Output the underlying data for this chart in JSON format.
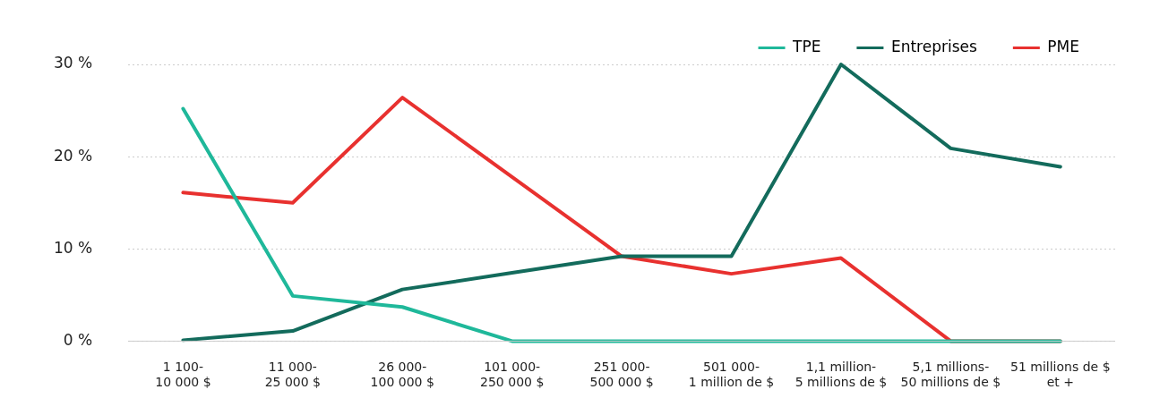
{
  "chart_data": {
    "type": "line",
    "categories": [
      "1 100-\n10 000 $",
      "11 000-\n25 000 $",
      "26 000-\n100 000 $",
      "101 000-\n250 000 $",
      "251 000-\n500 000 $",
      "501 000-\n1 million de $",
      "1,1 million-\n5 millions de $",
      "5,1 millions-\n50 millions de $",
      "51 millions de $\net +"
    ],
    "series": [
      {
        "name": "TPE",
        "color": "#1fb89a",
        "values": [
          25.2,
          4.9,
          3.7,
          0,
          0,
          0,
          0,
          0,
          0
        ]
      },
      {
        "name": "Entreprises",
        "color": "#136b5c",
        "values": [
          0.1,
          1.1,
          5.6,
          7.4,
          9.2,
          9.2,
          30,
          20.9,
          18.9
        ]
      },
      {
        "name": "PME",
        "color": "#e8312f",
        "values": [
          16.1,
          15,
          26.4,
          17.8,
          9.2,
          7.3,
          9,
          0,
          0
        ]
      }
    ],
    "ylim": [
      0,
      30
    ],
    "yticks": [
      {
        "value": 0,
        "label": "0 %"
      },
      {
        "value": 10,
        "label": "10 %"
      },
      {
        "value": 20,
        "label": "20 %"
      },
      {
        "value": 30,
        "label": "30 %"
      }
    ],
    "grid": "y",
    "legend": "top right",
    "marker": "none",
    "line_style": "solid"
  }
}
